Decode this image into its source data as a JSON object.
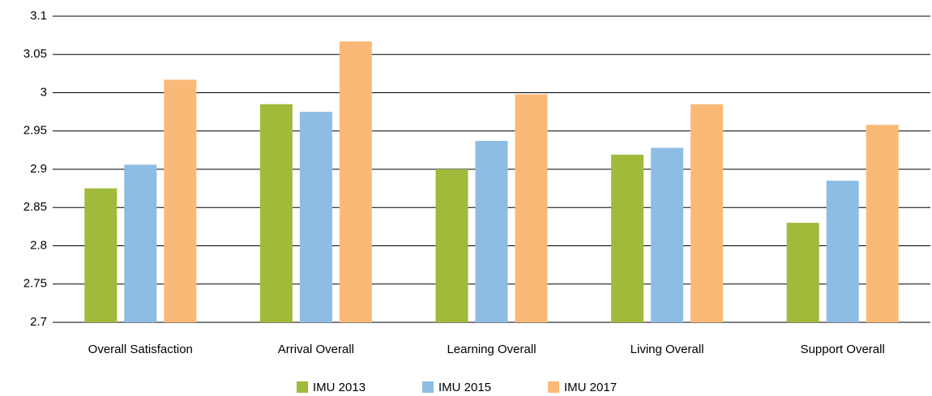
{
  "chart_data": {
    "type": "bar",
    "categories": [
      "Overall Satisfaction",
      "Arrival Overall",
      "Learning Overall",
      "Living Overall",
      "Support Overall"
    ],
    "series": [
      {
        "name": "IMU 2013",
        "color": "#a0ba3a",
        "values": [
          2.875,
          2.985,
          2.9,
          2.919,
          2.83
        ]
      },
      {
        "name": "IMU 2015",
        "color": "#8dbde4",
        "values": [
          2.906,
          2.975,
          2.937,
          2.928,
          2.885
        ]
      },
      {
        "name": "IMU 2017",
        "color": "#fbb977",
        "values": [
          3.017,
          3.067,
          2.998,
          2.985,
          2.958
        ]
      }
    ],
    "ylim": [
      2.7,
      3.1
    ],
    "yticks": [
      2.7,
      2.75,
      2.8,
      2.85,
      2.9,
      2.95,
      3,
      3.05,
      3.1
    ],
    "grid": true,
    "legend": "bottom"
  }
}
